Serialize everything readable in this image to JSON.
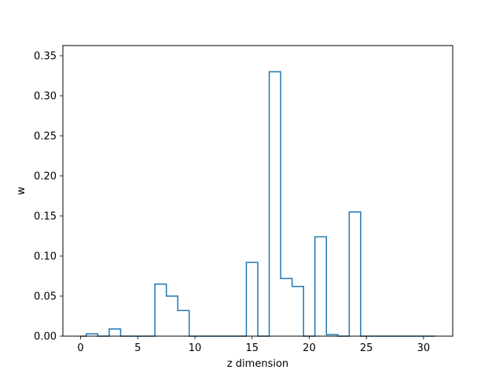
{
  "chart_data": {
    "type": "step",
    "title": "",
    "xlabel": "z dimension",
    "ylabel": "w",
    "xlim": [
      -1.55,
      32.55
    ],
    "ylim": [
      0,
      0.3627
    ],
    "xticks": [
      0,
      5,
      10,
      15,
      20,
      25,
      30
    ],
    "yticks": [
      0.0,
      0.05,
      0.1,
      0.15,
      0.2,
      0.25,
      0.3,
      0.35
    ],
    "ytick_labels": [
      "0.00",
      "0.05",
      "0.10",
      "0.15",
      "0.20",
      "0.25",
      "0.30",
      "0.35"
    ],
    "x": [
      0,
      1,
      2,
      3,
      4,
      5,
      6,
      7,
      8,
      9,
      10,
      11,
      12,
      13,
      14,
      15,
      16,
      17,
      18,
      19,
      20,
      21,
      22,
      23,
      24,
      25,
      26,
      27,
      28,
      29,
      30,
      31
    ],
    "values": [
      0.0,
      0.003,
      0.0,
      0.009,
      0.0,
      0.0,
      0.0,
      0.065,
      0.05,
      0.032,
      0.0,
      0.0,
      0.0,
      0.0,
      0.0,
      0.092,
      0.0,
      0.33,
      0.072,
      0.062,
      0.0,
      0.124,
      0.002,
      0.0,
      0.155,
      0.0,
      0.0,
      0.0,
      0.0,
      0.0,
      0.0,
      0.0
    ],
    "step_where": "mid",
    "line_color": "#1f77b4",
    "grid": false
  }
}
